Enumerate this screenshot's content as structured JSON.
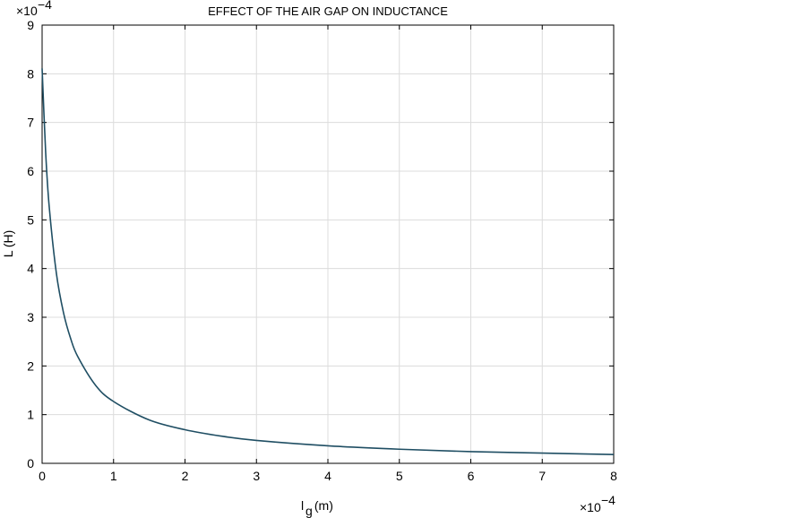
{
  "chart_data": {
    "type": "line",
    "title": "EFFECT OF THE AIR GAP ON INDUCTANCE",
    "xlabel_main": "l",
    "xlabel_sub": "g",
    "xlabel_unit": " (m)",
    "ylabel": "L (H)",
    "x_exponent_label": "×10",
    "x_exponent_power": "−4",
    "y_exponent_label": "×10",
    "y_exponent_power": "−4",
    "xlim": [
      0,
      8
    ],
    "ylim": [
      0,
      9
    ],
    "xticks": [
      "0",
      "1",
      "2",
      "3",
      "4",
      "5",
      "6",
      "7",
      "8"
    ],
    "yticks": [
      "0",
      "1",
      "2",
      "3",
      "4",
      "5",
      "6",
      "7",
      "8",
      "9"
    ],
    "grid": true,
    "line_color": "#1f4e63",
    "series": [
      {
        "name": "L",
        "x": [
          0,
          0.05,
          0.1,
          0.2,
          0.3,
          0.4,
          0.5,
          0.75,
          1,
          1.5,
          2,
          2.5,
          3,
          4,
          5,
          6,
          7,
          8
        ],
        "y": [
          8.11,
          6.38,
          5.26,
          3.9,
          3.09,
          2.56,
          2.19,
          1.6,
          1.27,
          0.89,
          0.69,
          0.56,
          0.47,
          0.36,
          0.29,
          0.24,
          0.21,
          0.18
        ]
      }
    ]
  }
}
